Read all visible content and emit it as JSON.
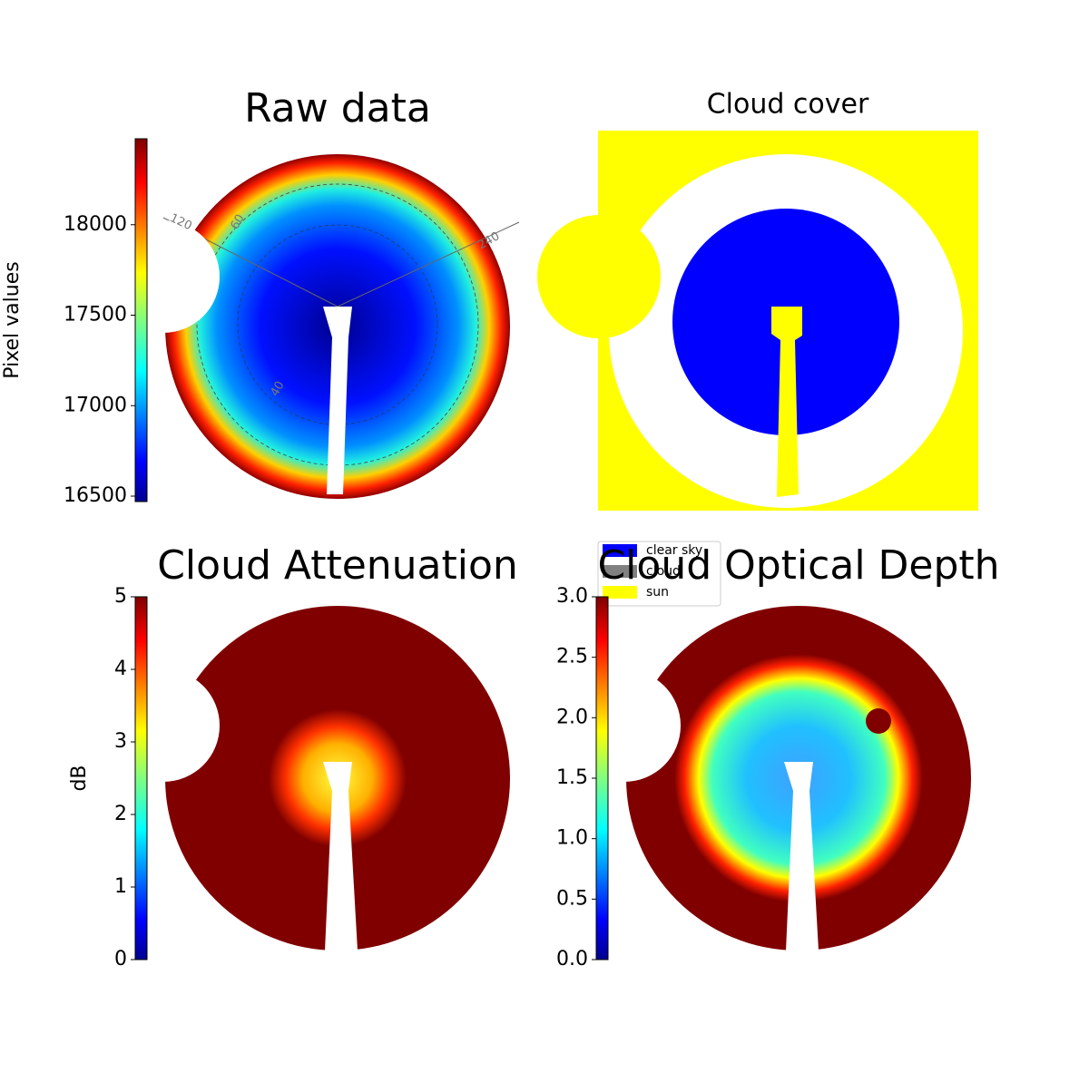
{
  "chart_data": [
    {
      "type": "image",
      "title": "Raw data",
      "colormap": "jet",
      "colorbar_label": "Pixel values",
      "clim": [
        16470,
        18475
      ],
      "cticks": [
        16500,
        17000,
        17500,
        18000
      ],
      "annotations": [
        "120",
        "60",
        "240",
        "40"
      ]
    },
    {
      "type": "image",
      "title": "Cloud cover",
      "legend": "lower left",
      "series": [
        {
          "name": "clear sky",
          "color": "#0000ff"
        },
        {
          "name": "cloud",
          "color": "#808080"
        },
        {
          "name": "sun",
          "color": "#ffff00"
        }
      ]
    },
    {
      "type": "image",
      "title": "Cloud Attenuation",
      "colormap": "jet",
      "colorbar_label": "dB",
      "clim": [
        0,
        5
      ],
      "cticks": [
        0,
        1,
        2,
        3,
        4,
        5
      ]
    },
    {
      "type": "image",
      "title": "Cloud Optical Depth",
      "colormap": "jet",
      "clim": [
        0,
        3
      ],
      "cticks": [
        {
          "value": 0,
          "label": "0.0"
        },
        {
          "value": 0.5,
          "label": "0.5"
        },
        {
          "value": 1,
          "label": "1.0"
        },
        {
          "value": 1.5,
          "label": "1.5"
        },
        {
          "value": 2,
          "label": "2.0"
        },
        {
          "value": 2.5,
          "label": "2.5"
        },
        {
          "value": 3,
          "label": "3.0"
        }
      ]
    }
  ]
}
